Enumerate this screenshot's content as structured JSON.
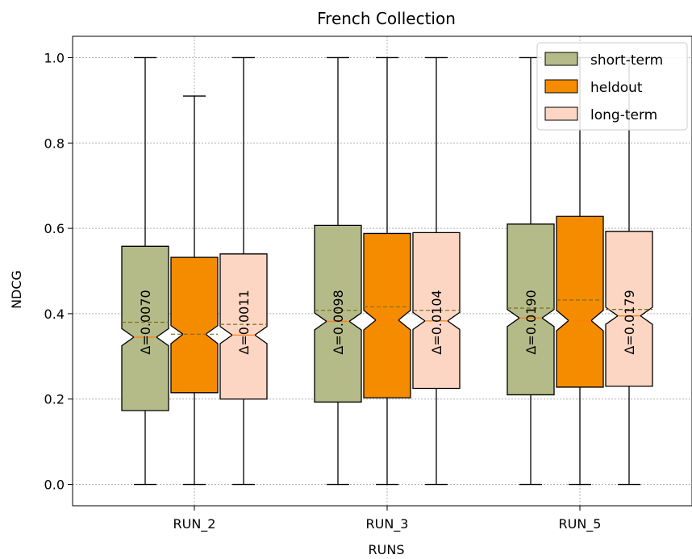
{
  "chart_data": {
    "type": "boxplot",
    "title": "French Collection",
    "xlabel": "RUNS",
    "ylabel": "NDCG",
    "ylim": [
      -0.05,
      1.05
    ],
    "yticks": [
      "0.0",
      "0.2",
      "0.4",
      "0.6",
      "0.8",
      "1.0"
    ],
    "grid": true,
    "legend_position": "top-right",
    "categories": [
      "RUN_2",
      "RUN_3",
      "RUN_5"
    ],
    "series": [
      {
        "name": "short-term",
        "color": "#b5bb88",
        "median_color": "#ff7f0e",
        "boxes": [
          {
            "whislo": 0.0,
            "q1": 0.173,
            "med": 0.345,
            "q3": 0.558,
            "whishi": 1.0,
            "mean": 0.38,
            "notch_lo": 0.325,
            "notch_hi": 0.365
          },
          {
            "whislo": 0.0,
            "q1": 0.193,
            "med": 0.382,
            "q3": 0.607,
            "whishi": 1.0,
            "mean": 0.408,
            "notch_lo": 0.362,
            "notch_hi": 0.402
          },
          {
            "whislo": 0.0,
            "q1": 0.21,
            "med": 0.39,
            "q3": 0.61,
            "whishi": 1.0,
            "mean": 0.413,
            "notch_lo": 0.37,
            "notch_hi": 0.41
          }
        ]
      },
      {
        "name": "heldout",
        "color": "#f58c00",
        "median_color": "#ff7f0e",
        "boxes": [
          {
            "whislo": 0.0,
            "q1": 0.215,
            "med": 0.352,
            "q3": 0.532,
            "whishi": 0.91,
            "mean": 0.352,
            "notch_lo": 0.33,
            "notch_hi": 0.372
          },
          {
            "whislo": 0.0,
            "q1": 0.203,
            "med": 0.385,
            "q3": 0.588,
            "whishi": 1.0,
            "mean": 0.416,
            "notch_lo": 0.362,
            "notch_hi": 0.408
          },
          {
            "whislo": 0.0,
            "q1": 0.228,
            "med": 0.384,
            "q3": 0.628,
            "whishi": 1.0,
            "mean": 0.432,
            "notch_lo": 0.36,
            "notch_hi": 0.408
          }
        ]
      },
      {
        "name": "long-term",
        "color": "#fdd6c3",
        "median_color": "#ff7f0e",
        "boxes": [
          {
            "whislo": 0.0,
            "q1": 0.2,
            "med": 0.35,
            "q3": 0.54,
            "whishi": 1.0,
            "mean": 0.375,
            "notch_lo": 0.33,
            "notch_hi": 0.37
          },
          {
            "whislo": 0.0,
            "q1": 0.225,
            "med": 0.383,
            "q3": 0.59,
            "whishi": 1.0,
            "mean": 0.408,
            "notch_lo": 0.363,
            "notch_hi": 0.403
          },
          {
            "whislo": 0.0,
            "q1": 0.23,
            "med": 0.395,
            "q3": 0.593,
            "whishi": 1.0,
            "mean": 0.41,
            "notch_lo": 0.375,
            "notch_hi": 0.415
          }
        ]
      }
    ],
    "annotations": [
      {
        "text": "Δ=0.0070",
        "category": "RUN_2",
        "series": "short-term"
      },
      {
        "text": "Δ=0.0011",
        "category": "RUN_2",
        "series": "long-term"
      },
      {
        "text": "Δ=0.0098",
        "category": "RUN_3",
        "series": "short-term"
      },
      {
        "text": "Δ=0.0104",
        "category": "RUN_3",
        "series": "long-term"
      },
      {
        "text": "Δ=0.0190",
        "category": "RUN_5",
        "series": "short-term"
      },
      {
        "text": "Δ=0.0179",
        "category": "RUN_5",
        "series": "long-term"
      }
    ]
  }
}
